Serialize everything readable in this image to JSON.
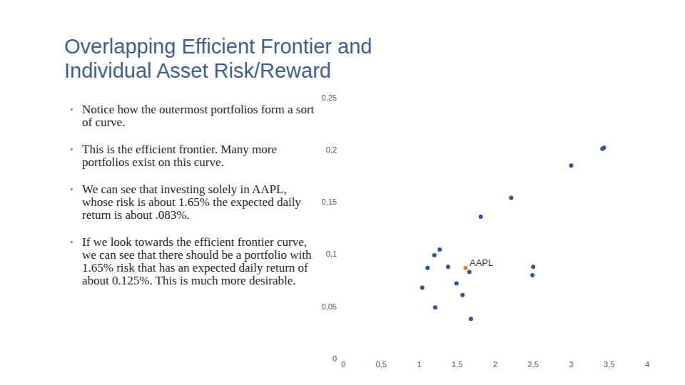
{
  "slide": {
    "title": [
      "Overlapping Efficient Frontier and",
      "Individual Asset Risk/Reward"
    ],
    "bullets": [
      "Notice how the outermost portfolios form a sort of curve.",
      "This is the efficient frontier.  Many more portfolios exist on this curve.",
      "We can see that investing solely in AAPL, whose risk is about 1.65% the expected daily return is about .083%.",
      "If we look towards the efficient frontier curve, we can see that there should be a portfolio with 1.65% risk that has an expected daily return of about 0.125%.  This is much more desirable."
    ]
  },
  "chart_data": {
    "type": "scatter",
    "x": [
      3.41,
      3.43,
      3.0,
      2.21,
      1.81,
      1.27,
      1.2,
      1.11,
      1.38,
      1.61,
      1.66,
      1.49,
      1.04,
      1.57,
      1.21,
      1.68,
      2.5,
      2.49
    ],
    "values": [
      0.201,
      0.202,
      0.185,
      0.154,
      0.136,
      0.1045,
      0.099,
      0.087,
      0.088,
      0.087,
      0.083,
      0.072,
      0.068,
      0.061,
      0.049,
      0.038,
      0.088,
      0.08
    ],
    "colors": [
      "#2f5597",
      "#2f5597",
      "#2f5597",
      "#2f5597",
      "#2f5597",
      "#2f5597",
      "#2f5597",
      "#2f5597",
      "#2f5597",
      "#ed7d31",
      "#2f5597",
      "#2f5597",
      "#2f5597",
      "#2f5597",
      "#2f5597",
      "#2f5597",
      "#2f5597",
      "#2f5597"
    ],
    "marker": "circle",
    "xlim": [
      0,
      4
    ],
    "xticks": [
      0,
      {
        "value": 0.5,
        "label": "0,5"
      },
      1,
      {
        "value": 1.5,
        "label": "1,5"
      },
      2,
      {
        "value": 2.5,
        "label": "2,5"
      },
      3,
      {
        "value": 3.5,
        "label": "3,5"
      },
      4
    ],
    "ylim": [
      0,
      0.25
    ],
    "yticks": [
      0,
      {
        "value": 0.05,
        "label": "0,05"
      },
      {
        "value": 0.1,
        "label": "0,1"
      },
      {
        "value": 0.15,
        "label": "0,15"
      },
      {
        "value": 0.2,
        "label": "0,2"
      },
      {
        "value": 0.25,
        "label": "0,25"
      }
    ],
    "grid": false,
    "annotations": [
      {
        "text": "AAPL",
        "x": 1.61,
        "y": 0.087
      }
    ]
  }
}
